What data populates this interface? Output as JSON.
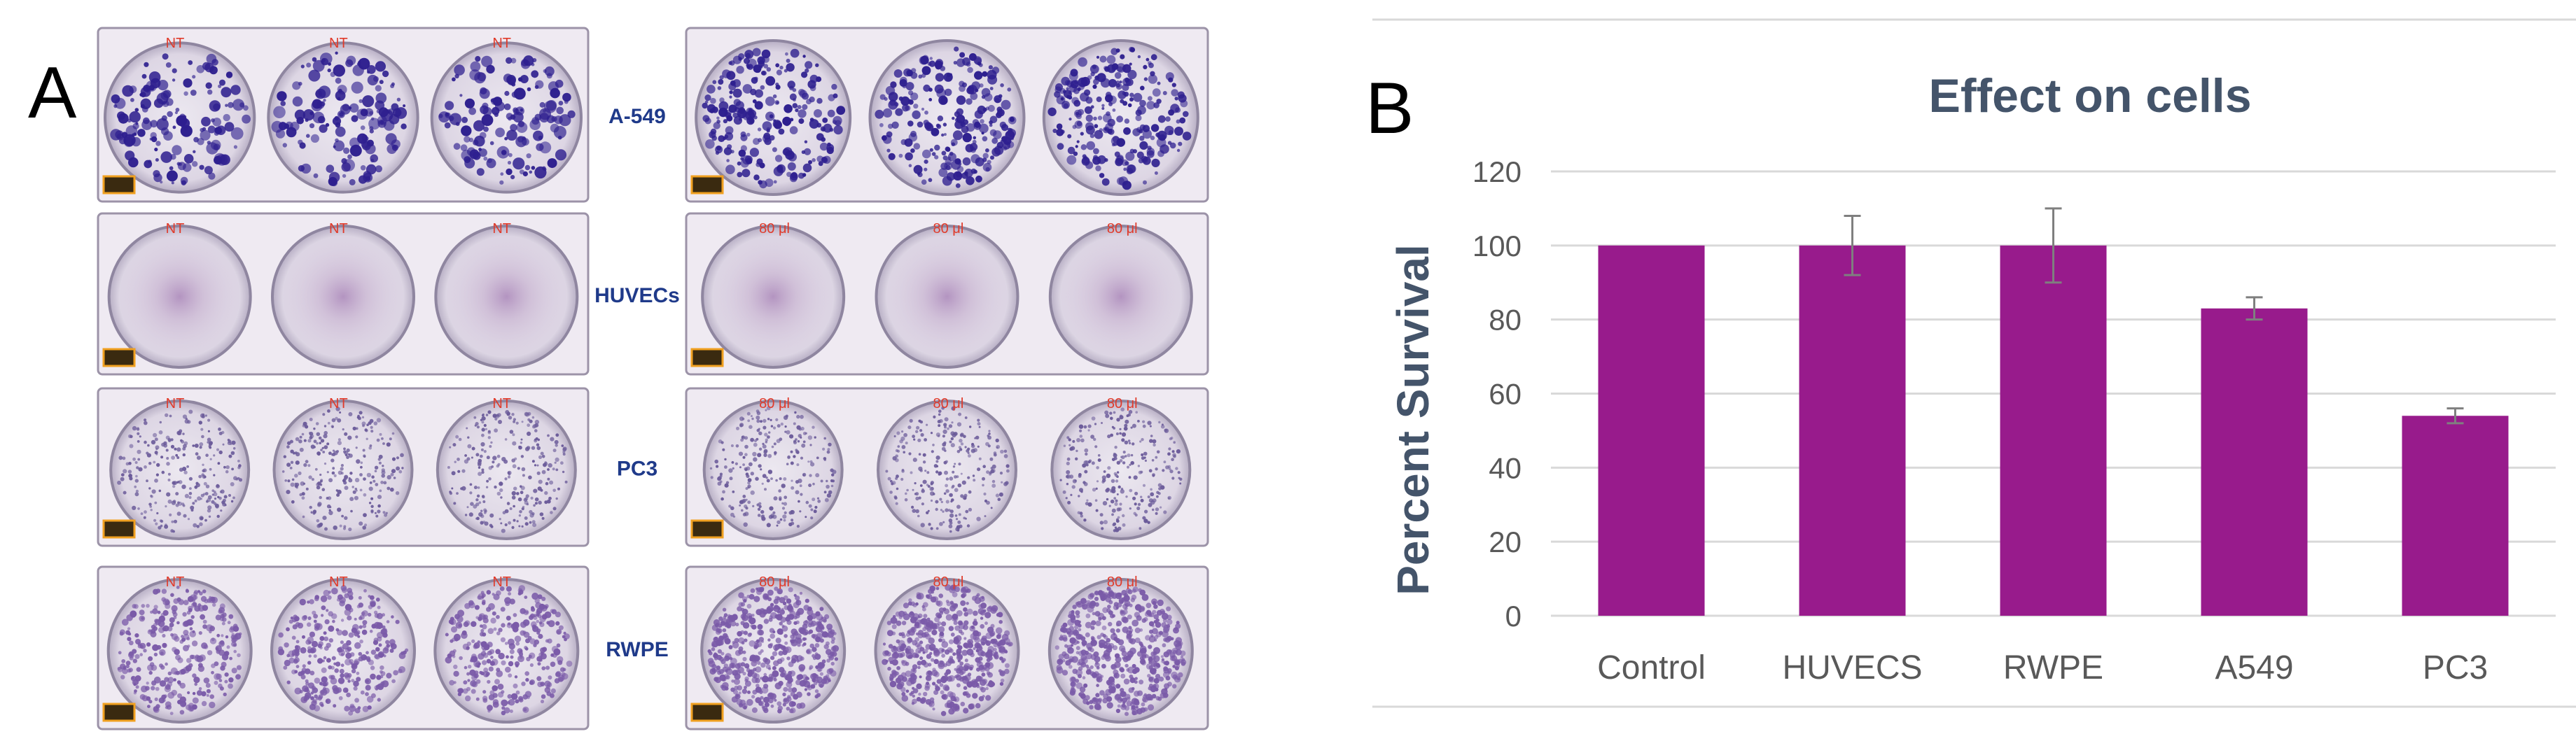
{
  "panel_a": {
    "letter": "A",
    "rows": [
      {
        "cell_line": "A-549",
        "left_notes": [
          "NT",
          "NT",
          "NT"
        ],
        "right_notes": [
          "",
          "",
          ""
        ],
        "stain": "dark"
      },
      {
        "cell_line": "HUVECs",
        "left_notes": [
          "NT",
          "NT",
          "NT"
        ],
        "right_notes": [
          "80 μl",
          "80 μl",
          "80 μl"
        ],
        "stain": "faint"
      },
      {
        "cell_line": "PC3",
        "left_notes": [
          "NT",
          "NT",
          "NT"
        ],
        "right_notes": [
          "80 μl",
          "80 μl",
          "80 μl"
        ],
        "stain": "speckled"
      },
      {
        "cell_line": "RWPE",
        "left_notes": [
          "NT",
          "NT",
          "NT"
        ],
        "right_notes": [
          "80 μl",
          "80 μl",
          "80 μl"
        ],
        "stain": "dense"
      }
    ]
  },
  "panel_b": {
    "letter": "B"
  },
  "colors": {
    "bar": "#981b8c",
    "stain_dark": "#2e1f8f",
    "stain_purple": "#7a5aa8",
    "grid": "#d9d9d9"
  },
  "chart_data": {
    "type": "bar",
    "title": "Effect on cells",
    "xlabel": "",
    "ylabel": "Percent Survival",
    "categories": [
      "Control",
      "HUVECS",
      "RWPE",
      "A549",
      "PC3"
    ],
    "values": [
      100,
      100,
      100,
      83,
      54
    ],
    "error": [
      0,
      8,
      10,
      3,
      2
    ],
    "ylim": [
      0,
      120
    ],
    "yticks": [
      "0",
      "20",
      "40",
      "60",
      "80",
      "100",
      "120"
    ],
    "grid": true
  }
}
